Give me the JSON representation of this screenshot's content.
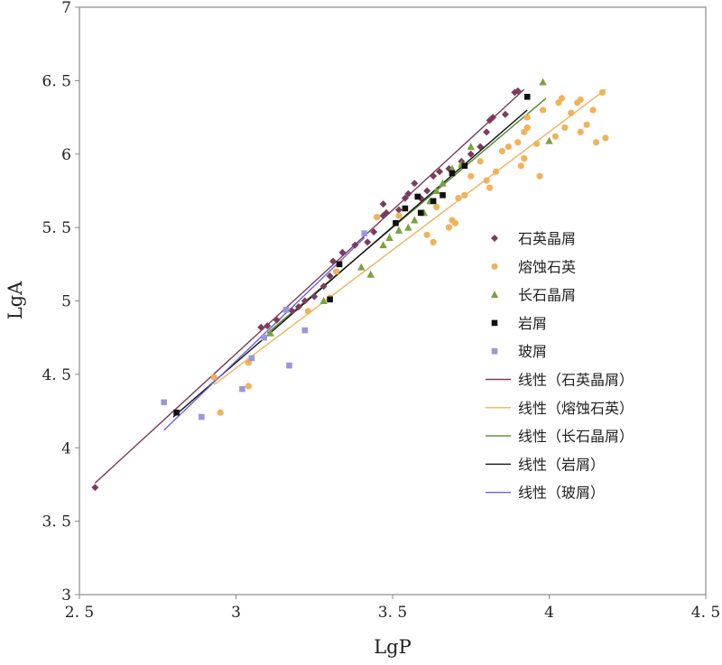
{
  "chart_data": {
    "type": "scatter",
    "xlabel": "LgP",
    "ylabel": "LgA",
    "xlim": [
      2.5,
      4.5
    ],
    "ylim": [
      3,
      7
    ],
    "xticks": [
      "2.5",
      "3",
      "3.5",
      "4",
      "4.5"
    ],
    "yticks": [
      "3",
      "3.5",
      "4",
      "4.5",
      "5",
      "5.5",
      "6",
      "6.5",
      "7"
    ],
    "grid": false,
    "legend_position": "right",
    "series": [
      {
        "name": "石英晶屑",
        "marker": "diamond",
        "color": "#7b3c5e",
        "points": [
          [
            2.55,
            3.73
          ],
          [
            3.08,
            4.82
          ],
          [
            3.1,
            4.83
          ],
          [
            3.13,
            4.87
          ],
          [
            3.18,
            4.93
          ],
          [
            3.2,
            4.96
          ],
          [
            3.22,
            5.0
          ],
          [
            3.25,
            5.03
          ],
          [
            3.28,
            5.1
          ],
          [
            3.3,
            5.17
          ],
          [
            3.31,
            5.27
          ],
          [
            3.34,
            5.33
          ],
          [
            3.38,
            5.38
          ],
          [
            3.42,
            5.4
          ],
          [
            3.44,
            5.47
          ],
          [
            3.47,
            5.58
          ],
          [
            3.48,
            5.6
          ],
          [
            3.47,
            5.66
          ],
          [
            3.52,
            5.62
          ],
          [
            3.54,
            5.7
          ],
          [
            3.55,
            5.73
          ],
          [
            3.57,
            5.8
          ],
          [
            3.59,
            5.7
          ],
          [
            3.61,
            5.75
          ],
          [
            3.63,
            5.85
          ],
          [
            3.65,
            5.88
          ],
          [
            3.68,
            5.9
          ],
          [
            3.72,
            5.95
          ],
          [
            3.75,
            6.0
          ],
          [
            3.78,
            6.05
          ],
          [
            3.8,
            6.15
          ],
          [
            3.81,
            6.23
          ],
          [
            3.82,
            6.25
          ],
          [
            3.86,
            6.27
          ],
          [
            3.89,
            6.42
          ],
          [
            3.9,
            6.43
          ]
        ]
      },
      {
        "name": "熔蚀石英",
        "marker": "circle",
        "color": "#f0b25a",
        "points": [
          [
            2.93,
            4.48
          ],
          [
            2.95,
            4.24
          ],
          [
            3.04,
            4.42
          ],
          [
            3.04,
            4.58
          ],
          [
            3.23,
            4.93
          ],
          [
            3.3,
            5.02
          ],
          [
            3.32,
            5.2
          ],
          [
            3.45,
            5.57
          ],
          [
            3.52,
            5.58
          ],
          [
            3.61,
            5.45
          ],
          [
            3.63,
            5.4
          ],
          [
            3.64,
            5.64
          ],
          [
            3.68,
            5.5
          ],
          [
            3.69,
            5.55
          ],
          [
            3.7,
            5.53
          ],
          [
            3.71,
            5.7
          ],
          [
            3.73,
            5.72
          ],
          [
            3.75,
            5.85
          ],
          [
            3.78,
            5.95
          ],
          [
            3.8,
            5.82
          ],
          [
            3.81,
            5.77
          ],
          [
            3.83,
            5.88
          ],
          [
            3.85,
            6.02
          ],
          [
            3.87,
            6.05
          ],
          [
            3.9,
            6.08
          ],
          [
            3.91,
            5.92
          ],
          [
            3.92,
            5.97
          ],
          [
            3.92,
            6.15
          ],
          [
            3.93,
            6.18
          ],
          [
            3.93,
            6.25
          ],
          [
            3.96,
            6.07
          ],
          [
            3.97,
            5.85
          ],
          [
            3.98,
            6.3
          ],
          [
            4.02,
            6.12
          ],
          [
            4.03,
            6.35
          ],
          [
            4.04,
            6.38
          ],
          [
            4.05,
            6.18
          ],
          [
            4.07,
            6.28
          ],
          [
            4.09,
            6.35
          ],
          [
            4.1,
            6.37
          ],
          [
            4.1,
            6.15
          ],
          [
            4.12,
            6.2
          ],
          [
            4.14,
            6.3
          ],
          [
            4.15,
            6.08
          ],
          [
            4.17,
            6.42
          ],
          [
            4.18,
            6.11
          ]
        ]
      },
      {
        "name": "长石晶屑",
        "marker": "triangle",
        "color": "#7aa23f",
        "points": [
          [
            3.11,
            4.78
          ],
          [
            3.28,
            5.0
          ],
          [
            3.4,
            5.23
          ],
          [
            3.43,
            5.18
          ],
          [
            3.47,
            5.38
          ],
          [
            3.49,
            5.43
          ],
          [
            3.52,
            5.48
          ],
          [
            3.55,
            5.5
          ],
          [
            3.57,
            5.55
          ],
          [
            3.6,
            5.6
          ],
          [
            3.62,
            5.68
          ],
          [
            3.64,
            5.75
          ],
          [
            3.66,
            5.8
          ],
          [
            3.69,
            5.9
          ],
          [
            3.72,
            5.93
          ],
          [
            3.75,
            6.05
          ],
          [
            3.98,
            6.49
          ],
          [
            4.0,
            6.09
          ]
        ]
      },
      {
        "name": "岩屑",
        "marker": "square",
        "color": "#111111",
        "points": [
          [
            2.81,
            4.24
          ],
          [
            3.3,
            5.01
          ],
          [
            3.33,
            5.25
          ],
          [
            3.51,
            5.53
          ],
          [
            3.54,
            5.63
          ],
          [
            3.58,
            5.71
          ],
          [
            3.59,
            5.6
          ],
          [
            3.63,
            5.68
          ],
          [
            3.66,
            5.72
          ],
          [
            3.69,
            5.87
          ],
          [
            3.73,
            5.92
          ],
          [
            3.93,
            6.39
          ]
        ]
      },
      {
        "name": "玻屑",
        "marker": "square",
        "color": "#9b97db",
        "points": [
          [
            2.77,
            4.31
          ],
          [
            2.89,
            4.21
          ],
          [
            3.02,
            4.4
          ],
          [
            3.05,
            4.61
          ],
          [
            3.09,
            4.75
          ],
          [
            3.16,
            4.94
          ],
          [
            3.17,
            4.56
          ],
          [
            3.22,
            4.8
          ],
          [
            3.41,
            5.46
          ]
        ]
      }
    ],
    "trendlines": [
      {
        "name": "线性（石英晶屑）",
        "color": "#7b3c5e",
        "x": [
          2.55,
          3.92
        ],
        "y": [
          3.76,
          6.44
        ]
      },
      {
        "name": "线性（熔蚀石英）",
        "color": "#f0b25a",
        "x": [
          2.93,
          4.18
        ],
        "y": [
          4.43,
          6.44
        ]
      },
      {
        "name": "线性（长石晶屑）",
        "color": "#4f8a2e",
        "x": [
          3.1,
          3.99
        ],
        "y": [
          4.78,
          6.38
        ]
      },
      {
        "name": "线性（岩屑）",
        "color": "#111111",
        "x": [
          2.8,
          3.93
        ],
        "y": [
          4.21,
          6.3
        ]
      },
      {
        "name": "线性（玻屑）",
        "color": "#6b63d8",
        "x": [
          2.77,
          3.41
        ],
        "y": [
          4.12,
          5.43
        ]
      }
    ]
  }
}
